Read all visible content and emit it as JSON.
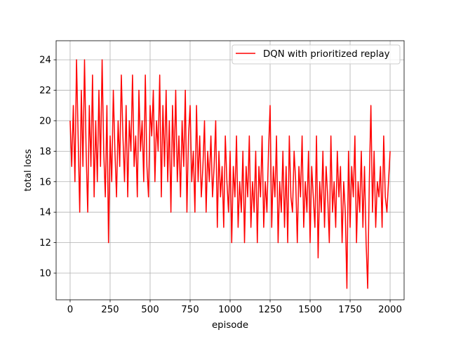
{
  "chart_data": {
    "type": "line",
    "title": "",
    "xlabel": "episode",
    "ylabel": "total loss",
    "xlim": [
      -87.5,
      2087.5
    ],
    "ylim": [
      8.25,
      25.25
    ],
    "xticks": [
      0,
      250,
      500,
      750,
      1000,
      1250,
      1500,
      1750,
      2000
    ],
    "yticks": [
      10,
      12,
      14,
      16,
      18,
      20,
      22,
      24
    ],
    "grid": true,
    "legend_position": "top-right",
    "series": [
      {
        "name": "DQN with prioritized replay",
        "color": "#ff0000",
        "x": [
          0,
          10,
          20,
          30,
          40,
          50,
          60,
          70,
          80,
          90,
          100,
          110,
          120,
          130,
          140,
          150,
          160,
          170,
          180,
          190,
          200,
          210,
          220,
          230,
          240,
          250,
          260,
          270,
          280,
          290,
          300,
          310,
          320,
          330,
          340,
          350,
          360,
          370,
          380,
          390,
          400,
          410,
          420,
          430,
          440,
          450,
          460,
          470,
          480,
          490,
          500,
          510,
          520,
          530,
          540,
          550,
          560,
          570,
          580,
          590,
          600,
          610,
          620,
          630,
          640,
          650,
          660,
          670,
          680,
          690,
          700,
          710,
          720,
          730,
          740,
          750,
          760,
          770,
          780,
          790,
          800,
          810,
          820,
          830,
          840,
          850,
          860,
          870,
          880,
          890,
          900,
          910,
          920,
          930,
          940,
          950,
          960,
          970,
          980,
          990,
          1000,
          1010,
          1020,
          1030,
          1040,
          1050,
          1060,
          1070,
          1080,
          1090,
          1100,
          1110,
          1120,
          1130,
          1140,
          1150,
          1160,
          1170,
          1180,
          1190,
          1200,
          1210,
          1220,
          1230,
          1240,
          1250,
          1260,
          1270,
          1280,
          1290,
          1300,
          1310,
          1320,
          1330,
          1340,
          1350,
          1360,
          1370,
          1380,
          1390,
          1400,
          1410,
          1420,
          1430,
          1440,
          1450,
          1460,
          1470,
          1480,
          1490,
          1500,
          1510,
          1520,
          1530,
          1540,
          1550,
          1560,
          1570,
          1580,
          1590,
          1600,
          1610,
          1620,
          1630,
          1640,
          1650,
          1660,
          1670,
          1680,
          1690,
          1700,
          1710,
          1720,
          1730,
          1740,
          1750,
          1760,
          1770,
          1780,
          1790,
          1800,
          1810,
          1820,
          1830,
          1840,
          1850,
          1860,
          1870,
          1880,
          1890,
          1900,
          1910,
          1920,
          1930,
          1940,
          1950,
          1960,
          1970,
          1980,
          1990,
          2000
        ],
        "y": [
          20,
          17,
          21,
          16,
          24,
          19,
          14,
          22,
          17,
          24,
          18,
          14,
          21,
          17,
          23,
          15,
          20,
          16,
          22,
          17,
          24,
          18,
          15,
          21,
          12,
          19,
          16,
          22,
          18,
          15,
          20,
          17,
          23,
          19,
          16,
          21,
          15,
          20,
          18,
          23,
          17,
          19,
          15,
          22,
          18,
          20,
          16,
          23,
          17,
          15,
          21,
          19,
          22,
          16,
          20,
          18,
          23,
          15,
          21,
          17,
          22,
          16,
          20,
          14,
          21,
          17,
          22,
          16,
          19,
          15,
          20,
          17,
          22,
          14,
          19,
          21,
          16,
          18,
          14,
          21,
          16,
          19,
          15,
          17,
          20,
          14,
          18,
          16,
          19,
          15,
          17,
          20,
          13,
          18,
          15,
          17,
          13,
          19,
          16,
          14,
          18,
          12,
          17,
          15,
          19,
          13,
          16,
          14,
          18,
          12,
          17,
          15,
          19,
          13,
          16,
          14,
          18,
          12,
          17,
          15,
          19,
          13,
          16,
          14,
          18,
          21,
          13,
          17,
          15,
          19,
          12,
          16,
          14,
          18,
          13,
          17,
          12,
          19,
          15,
          14,
          18,
          16,
          12,
          17,
          15,
          19,
          13,
          16,
          14,
          18,
          12,
          17,
          15,
          13,
          19,
          11,
          16,
          14,
          18,
          13,
          17,
          15,
          12,
          19,
          14,
          16,
          13,
          18,
          15,
          17,
          12,
          16,
          14,
          9,
          18,
          13,
          17,
          15,
          19,
          12,
          16,
          14,
          18,
          13,
          17,
          12,
          9,
          16,
          21,
          14,
          18,
          13,
          16,
          15,
          17,
          13,
          19,
          15,
          14,
          16,
          18
        ]
      }
    ]
  }
}
